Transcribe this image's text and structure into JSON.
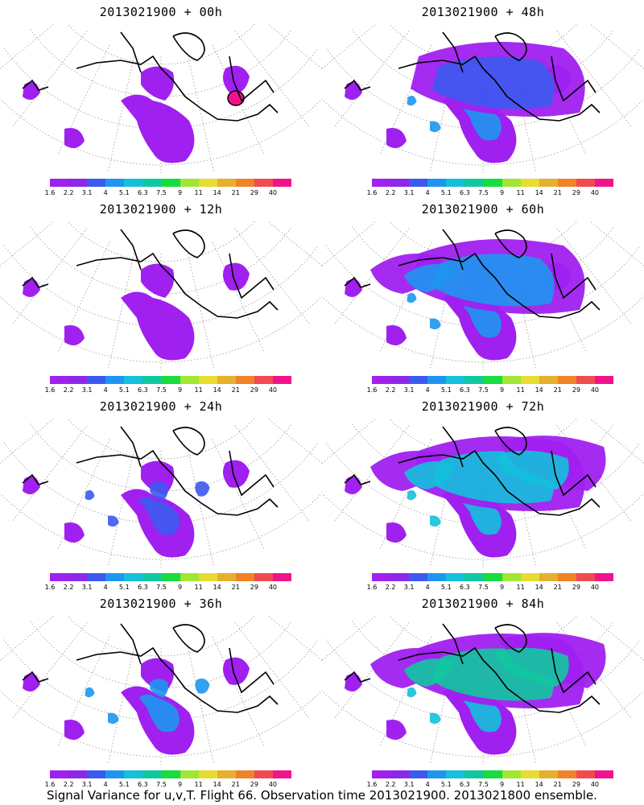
{
  "palette": [
    "#a020f0",
    "#8c28e6",
    "#3c5af0",
    "#1e96f0",
    "#14c0dc",
    "#10c8a0",
    "#18dc40",
    "#a0e632",
    "#e6dc32",
    "#e6af2d",
    "#f08228",
    "#f04b50",
    "#f0148c"
  ],
  "legend_ticks": [
    "1.6",
    "2.2",
    "3.1",
    "4",
    "5.1",
    "6.3",
    "7.5",
    "9",
    "11",
    "14",
    "21",
    "29",
    "40"
  ],
  "panels": [
    {
      "title": "2013021900 + 00h",
      "intensity": 0
    },
    {
      "title": "2013021900 + 48h",
      "intensity": 4
    },
    {
      "title": "2013021900 + 12h",
      "intensity": 1
    },
    {
      "title": "2013021900 + 60h",
      "intensity": 5
    },
    {
      "title": "2013021900 + 24h",
      "intensity": 2
    },
    {
      "title": "2013021900 + 72h",
      "intensity": 6
    },
    {
      "title": "2013021900 + 36h",
      "intensity": 3
    },
    {
      "title": "2013021900 + 84h",
      "intensity": 7
    }
  ],
  "footer": "Signal Variance for u,v,T. Flight 66. Observation time 2013021900. 2013021800 ensemble."
}
